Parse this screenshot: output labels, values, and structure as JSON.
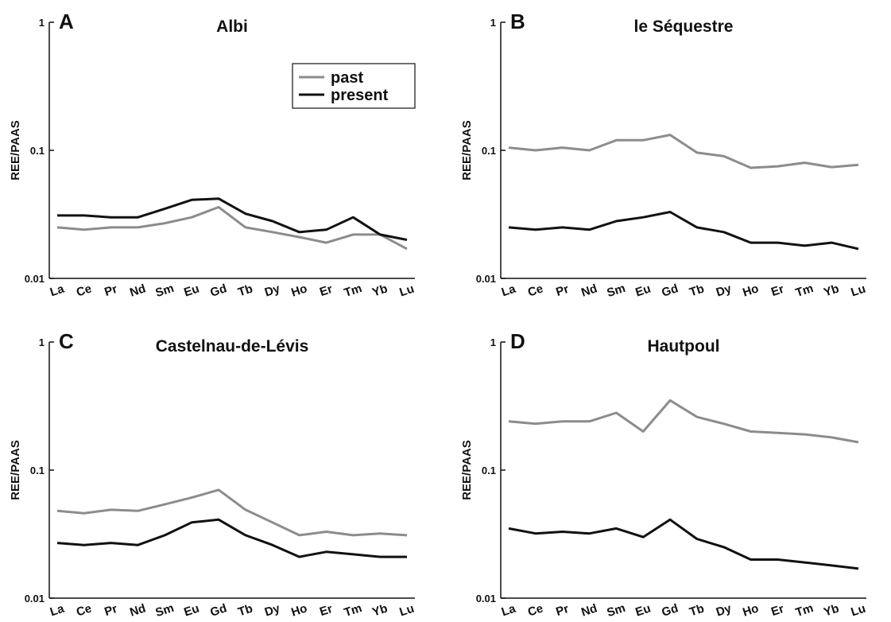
{
  "chart_data": [
    {
      "type": "line",
      "panel": "A",
      "title": "Albi",
      "ylabel": "REE/PAAS",
      "log_scale": true,
      "legend": "upper right",
      "categories": [
        "La",
        "Ce",
        "Pr",
        "Nd",
        "Sm",
        "Eu",
        "Gd",
        "Tb",
        "Dy",
        "Ho",
        "Er",
        "Tm",
        "Yb",
        "Lu"
      ],
      "ylim": [
        0.01,
        1
      ],
      "yticks": [
        0.01,
        0.1,
        1
      ],
      "series": [
        {
          "name": "past",
          "color": "#8c8c8c",
          "values": [
            0.025,
            0.024,
            0.025,
            0.025,
            0.027,
            0.03,
            0.036,
            0.025,
            0.023,
            0.021,
            0.019,
            0.022,
            0.022,
            0.017
          ]
        },
        {
          "name": "present",
          "color": "#111111",
          "values": [
            0.031,
            0.031,
            0.03,
            0.03,
            0.035,
            0.041,
            0.042,
            0.032,
            0.028,
            0.023,
            0.024,
            0.03,
            0.022,
            0.02
          ]
        }
      ]
    },
    {
      "type": "line",
      "panel": "B",
      "title": "le Séquestre",
      "ylabel": "REE/PAAS",
      "log_scale": true,
      "categories": [
        "La",
        "Ce",
        "Pr",
        "Nd",
        "Sm",
        "Eu",
        "Gd",
        "Tb",
        "Dy",
        "Ho",
        "Er",
        "Tm",
        "Yb",
        "Lu"
      ],
      "ylim": [
        0.01,
        1
      ],
      "yticks": [
        0.01,
        0.1,
        1
      ],
      "series": [
        {
          "color": "#8c8c8c",
          "values": [
            0.105,
            0.1,
            0.105,
            0.1,
            0.12,
            0.12,
            0.132,
            0.096,
            0.09,
            0.073,
            0.075,
            0.08,
            0.074,
            0.077
          ]
        },
        {
          "color": "#111111",
          "values": [
            0.025,
            0.024,
            0.025,
            0.024,
            0.028,
            0.03,
            0.033,
            0.025,
            0.023,
            0.019,
            0.019,
            0.018,
            0.019,
            0.017
          ]
        }
      ]
    },
    {
      "type": "line",
      "panel": "C",
      "title": "Castelnau-de-Lévis",
      "ylabel": "REE/PAAS",
      "log_scale": true,
      "categories": [
        "La",
        "Ce",
        "Pr",
        "Nd",
        "Sm",
        "Eu",
        "Gd",
        "Tb",
        "Dy",
        "Ho",
        "Er",
        "Tm",
        "Yb",
        "Lu"
      ],
      "ylim": [
        0.01,
        1
      ],
      "yticks": [
        0.01,
        0.1,
        1
      ],
      "series": [
        {
          "color": "#8c8c8c",
          "values": [
            0.048,
            0.046,
            0.049,
            0.048,
            0.054,
            0.061,
            0.07,
            0.049,
            0.039,
            0.031,
            0.033,
            0.031,
            0.032,
            0.031
          ]
        },
        {
          "color": "#111111",
          "values": [
            0.027,
            0.026,
            0.027,
            0.026,
            0.031,
            0.039,
            0.041,
            0.031,
            0.026,
            0.021,
            0.023,
            0.022,
            0.021,
            0.021
          ]
        }
      ]
    },
    {
      "type": "line",
      "panel": "D",
      "title": "Hautpoul",
      "ylabel": "REE/PAAS",
      "log_scale": true,
      "categories": [
        "La",
        "Ce",
        "Pr",
        "Nd",
        "Sm",
        "Eu",
        "Gd",
        "Tb",
        "Dy",
        "Ho",
        "Er",
        "Tm",
        "Yb",
        "Lu"
      ],
      "ylim": [
        0.01,
        1
      ],
      "yticks": [
        0.01,
        0.1,
        1
      ],
      "series": [
        {
          "color": "#8c8c8c",
          "values": [
            0.24,
            0.23,
            0.24,
            0.24,
            0.28,
            0.2,
            0.35,
            0.26,
            0.23,
            0.2,
            0.195,
            0.19,
            0.18,
            0.165
          ]
        },
        {
          "color": "#111111",
          "values": [
            0.035,
            0.032,
            0.033,
            0.032,
            0.035,
            0.03,
            0.041,
            0.029,
            0.025,
            0.02,
            0.02,
            0.019,
            0.018,
            0.017
          ]
        }
      ]
    }
  ]
}
